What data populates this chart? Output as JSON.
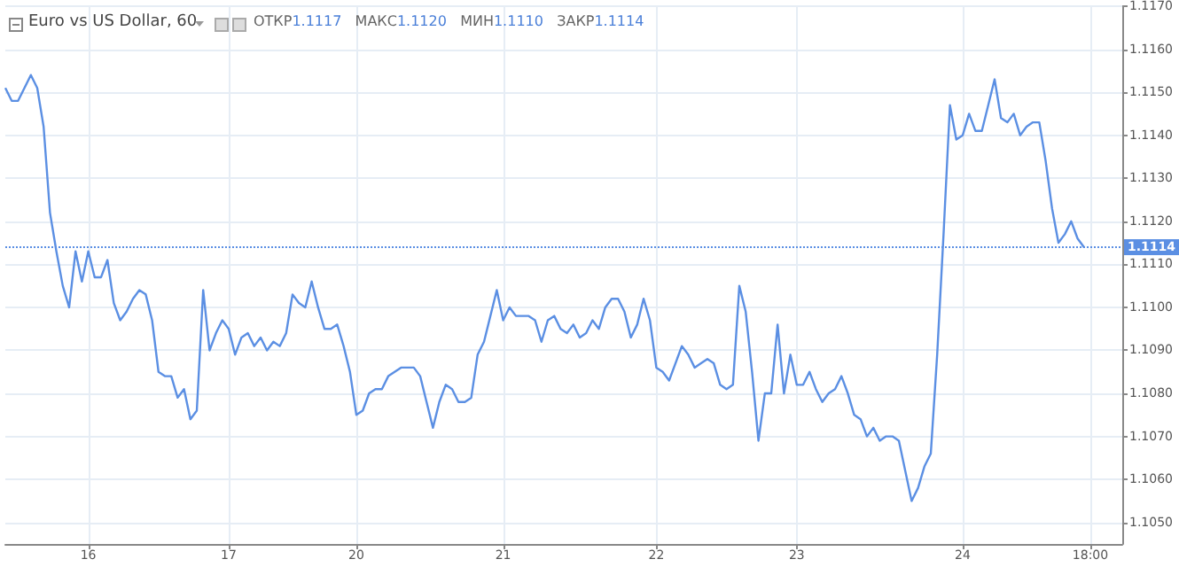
{
  "chart_data": {
    "type": "line",
    "title": "Euro vs US Dollar, 60",
    "annotations": [
      "ОТКР",
      "1.1117",
      "МАКС",
      "1.1120",
      "МИН",
      "1.1110",
      "ЗАКР",
      "1.1114"
    ],
    "categories": [
      null,
      null,
      null,
      null,
      null,
      null,
      null,
      null,
      null,
      null,
      null,
      null,
      null,
      "16",
      null,
      null,
      null,
      null,
      null,
      null,
      null,
      null,
      null,
      null,
      null,
      null,
      null,
      null,
      null,
      null,
      null,
      null,
      null,
      null,
      null,
      "17",
      null,
      null,
      null,
      null,
      null,
      null,
      null,
      null,
      null,
      null,
      null,
      null,
      null,
      null,
      null,
      null,
      null,
      null,
      null,
      "20",
      null,
      null,
      null,
      null,
      null,
      null,
      null,
      null,
      null,
      null,
      null,
      null,
      null,
      null,
      null,
      null,
      null,
      null,
      null,
      null,
      null,
      null,
      "21",
      null,
      null,
      null,
      null,
      null,
      null,
      null,
      null,
      null,
      null,
      null,
      null,
      null,
      null,
      null,
      null,
      null,
      null,
      null,
      null,
      null,
      null,
      null,
      "22",
      null,
      null,
      null,
      null,
      null,
      null,
      null,
      null,
      null,
      null,
      null,
      null,
      null,
      null,
      null,
      null,
      null,
      null,
      null,
      null,
      null,
      "23",
      null,
      null,
      null,
      null,
      null,
      null,
      null,
      null,
      null,
      null,
      null,
      null,
      null,
      null,
      null,
      null,
      null,
      null,
      null,
      null,
      null,
      null,
      null,
      null,
      null,
      "24",
      null,
      null,
      null,
      null,
      null,
      null,
      null,
      null,
      null,
      null,
      null,
      null,
      null,
      null,
      null,
      null,
      null,
      null,
      null,
      "18:00",
      null,
      null,
      null,
      null,
      null
    ],
    "series": [
      {
        "color": "#5b8fe3",
        "values": [
          1.1151,
          1.1148,
          1.1148,
          1.1151,
          1.1154,
          1.1151,
          1.1142,
          1.1122,
          1.1113,
          1.1105,
          1.11,
          1.1113,
          1.1106,
          1.1113,
          1.1107,
          1.1107,
          1.1111,
          1.1101,
          1.1097,
          1.1099,
          1.1102,
          1.1104,
          1.1103,
          1.1097,
          1.1085,
          1.1084,
          1.1084,
          1.1079,
          1.1081,
          1.1074,
          1.1076,
          1.1104,
          1.109,
          1.1094,
          1.1097,
          1.1095,
          1.1089,
          1.1093,
          1.1094,
          1.1091,
          1.1093,
          1.109,
          1.1092,
          1.1091,
          1.1094,
          1.1103,
          1.1101,
          1.11,
          1.1106,
          1.11,
          1.1095,
          1.1095,
          1.1096,
          1.1091,
          1.1085,
          1.1075,
          1.1076,
          1.108,
          1.1081,
          1.1081,
          1.1084,
          1.1085,
          1.1086,
          1.1086,
          1.1086,
          1.1084,
          1.1078,
          1.1072,
          1.1078,
          1.1082,
          1.1081,
          1.1078,
          1.1078,
          1.1079,
          1.1089,
          1.1092,
          1.1098,
          1.1104,
          1.1097,
          1.11,
          1.1098,
          1.1098,
          1.1098,
          1.1097,
          1.1092,
          1.1097,
          1.1098,
          1.1095,
          1.1094,
          1.1096,
          1.1093,
          1.1094,
          1.1097,
          1.1095,
          1.11,
          1.1102,
          1.1102,
          1.1099,
          1.1093,
          1.1096,
          1.1102,
          1.1097,
          1.1086,
          1.1085,
          1.1083,
          1.1087,
          1.1091,
          1.1089,
          1.1086,
          1.1087,
          1.1088,
          1.1087,
          1.1082,
          1.1081,
          1.1082,
          1.1105,
          1.1099,
          1.1085,
          1.1069,
          1.108,
          1.108,
          1.1096,
          1.108,
          1.1089,
          1.1082,
          1.1082,
          1.1085,
          1.1081,
          1.1078,
          1.108,
          1.1081,
          1.1084,
          1.108,
          1.1075,
          1.1074,
          1.107,
          1.1072,
          1.1069,
          1.107,
          1.107,
          1.1069,
          1.1062,
          1.1055,
          1.1058,
          1.1063,
          1.1066,
          1.1089,
          1.1117,
          1.1147,
          1.1139,
          1.114,
          1.1145,
          1.1141,
          1.1141,
          1.1147,
          1.1153,
          1.1144,
          1.1143,
          1.1145,
          1.114,
          1.1142,
          1.1143,
          1.1143,
          1.1134,
          1.1123,
          1.1115,
          1.1117,
          1.112,
          1.1116,
          1.1114,
          null,
          null,
          null,
          null,
          null,
          null
        ]
      }
    ],
    "ylim": [
      1.1045,
      1.117
    ],
    "yticks": [
      {
        "value": 1.105,
        "label": "1.1050"
      },
      {
        "value": 1.106,
        "label": "1.1060"
      },
      {
        "value": 1.107,
        "label": "1.1070"
      },
      {
        "value": 1.108,
        "label": "1.1080"
      },
      {
        "value": 1.109,
        "label": "1.1090"
      },
      {
        "value": 1.11,
        "label": "1.1100"
      },
      {
        "value": 1.111,
        "label": "1.1110"
      },
      {
        "value": 1.112,
        "label": "1.1120"
      },
      {
        "value": 1.113,
        "label": "1.1130"
      },
      {
        "value": 1.114,
        "label": "1.1140"
      },
      {
        "value": 1.115,
        "label": "1.1150"
      },
      {
        "value": 1.116,
        "label": "1.1160"
      },
      {
        "value": 1.117,
        "label": "1.1170"
      }
    ],
    "ref_lines": [
      {
        "axis": "y",
        "value": 1.1114,
        "label": "1.1114",
        "color": "#5b8fe3",
        "line_style": "dotted"
      }
    ],
    "grid": true,
    "marker": "none",
    "line_style": "solid"
  }
}
